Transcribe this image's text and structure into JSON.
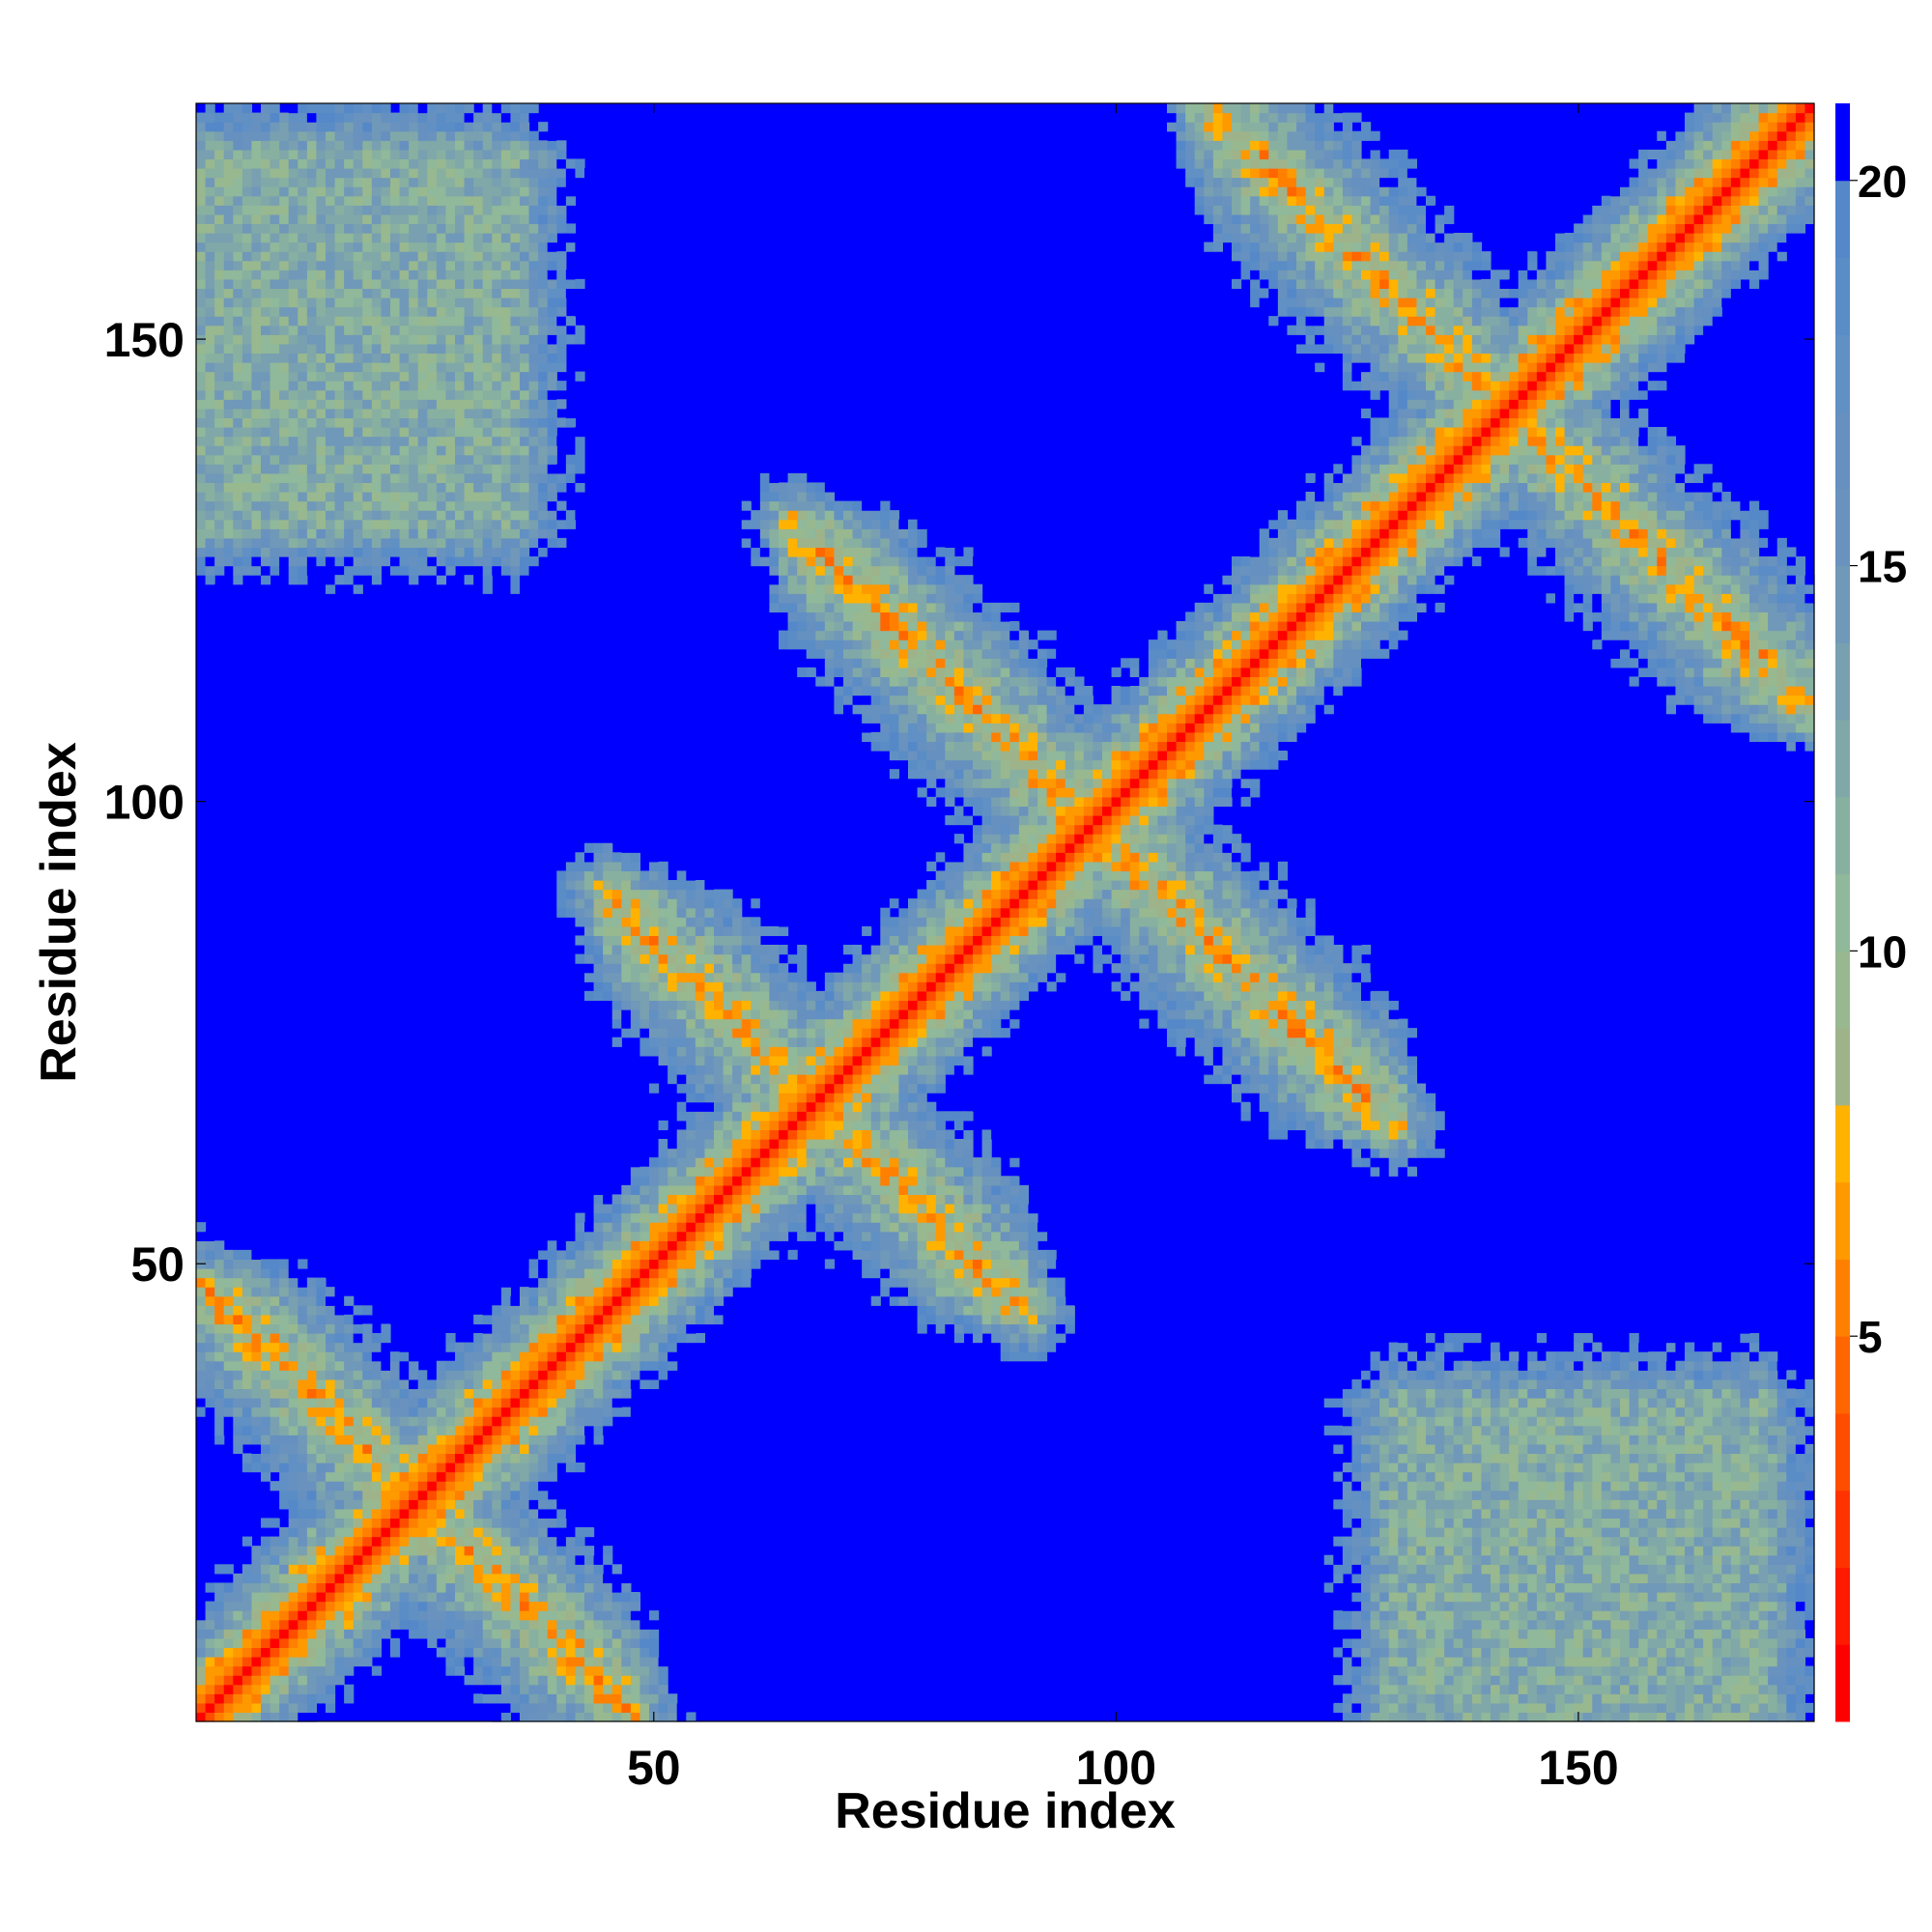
{
  "chart_data": {
    "type": "heatmap",
    "title": "",
    "xlabel": "Residue index",
    "ylabel": "Residue index",
    "n_residues": 175,
    "xlim": [
      0.5,
      175.5
    ],
    "ylim": [
      0.5,
      175.5
    ],
    "x_ticks": [
      50,
      100,
      150
    ],
    "y_ticks": [
      50,
      100,
      150
    ],
    "x_tick_labels": [
      "50",
      "100",
      "150"
    ],
    "y_tick_labels": [
      "50",
      "100",
      "150"
    ],
    "value_description": "pairwise distance",
    "cutoff": 21,
    "colorbar": {
      "range": [
        0,
        21
      ],
      "ticks": [
        5,
        10,
        15,
        20
      ],
      "tick_labels": [
        "5",
        "10",
        "15",
        "20"
      ],
      "levels": [
        {
          "max": 1,
          "color": "#ff0000"
        },
        {
          "max": 2,
          "color": "#ff1a00"
        },
        {
          "max": 3,
          "color": "#ff3300"
        },
        {
          "max": 4,
          "color": "#ff4d00"
        },
        {
          "max": 5,
          "color": "#ff6600"
        },
        {
          "max": 6,
          "color": "#ff8000"
        },
        {
          "max": 7,
          "color": "#ff9900"
        },
        {
          "max": 8,
          "color": "#ffb300"
        },
        {
          "max": 9,
          "color": "#9fb38a"
        },
        {
          "max": 10,
          "color": "#98b890"
        },
        {
          "max": 11,
          "color": "#90b89a"
        },
        {
          "max": 12,
          "color": "#88b0a0"
        },
        {
          "max": 13,
          "color": "#80a8a8"
        },
        {
          "max": 14,
          "color": "#78a0b0"
        },
        {
          "max": 15,
          "color": "#7098b8"
        },
        {
          "max": 16,
          "color": "#6a92be"
        },
        {
          "max": 17,
          "color": "#6590c0"
        },
        {
          "max": 18,
          "color": "#6090c4"
        },
        {
          "max": 19,
          "color": "#5a8cc6"
        },
        {
          "max": 20,
          "color": "#5588c8"
        },
        {
          "max": 21,
          "color": "#0000ff"
        }
      ]
    },
    "contact_bands": [
      {
        "residues_a": [
          1,
          48
        ],
        "residues_b": [
          1,
          48
        ],
        "orientation": "anti",
        "description": "hairpin block bottom-left"
      },
      {
        "residues_a": [
          45,
          90
        ],
        "residues_b": [
          45,
          90
        ],
        "orientation": "anti",
        "description": "hairpin block centre"
      },
      {
        "residues_a": [
          65,
          130
        ],
        "residues_b": [
          65,
          130
        ],
        "orientation": "anti",
        "description": "large antiparallel band"
      },
      {
        "residues_a": [
          110,
          175
        ],
        "residues_b": [
          110,
          175
        ],
        "orientation": "anti",
        "description": "hairpin block top-right"
      },
      {
        "residues_a": [
          1,
          35
        ],
        "residues_b": [
          130,
          170
        ],
        "orientation": "patch",
        "description": "N-C terminal patch"
      },
      {
        "residues_a": [
          140,
          160
        ],
        "residues_b": [
          1,
          20
        ],
        "orientation": "patch",
        "description": "C-N terminal patch"
      }
    ]
  }
}
